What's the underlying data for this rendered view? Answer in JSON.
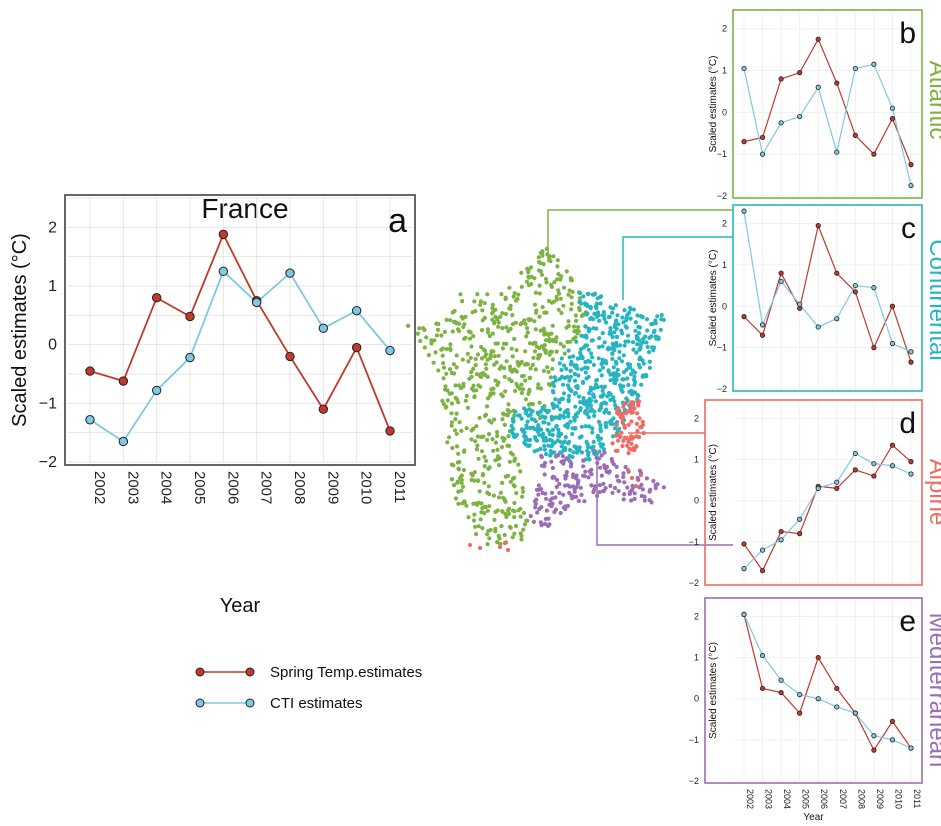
{
  "colors": {
    "spring": "#c0392b",
    "cti": "#7ec8e3",
    "atlantic": "#7cb342",
    "continental": "#26b5c0",
    "alpine": "#ef6b63",
    "mediterranean": "#9b6db5",
    "point_stroke": "#222222"
  },
  "years": [
    "2002",
    "2003",
    "2004",
    "2005",
    "2006",
    "2007",
    "2008",
    "2009",
    "2010",
    "2011"
  ],
  "legend": {
    "spring_label": "Spring Temp.estimates",
    "cti_label": "CTI estimates"
  },
  "chart_data": [
    {
      "id": "a",
      "type": "line",
      "title": "France",
      "panel_letter": "a",
      "xlabel": "Year",
      "ylabel": "Scaled estimates (°C)",
      "ylim": [
        -2,
        2.5
      ],
      "yticks": [
        "2",
        "1",
        "0",
        "−1",
        "−2"
      ],
      "grid": true,
      "categories": [
        "2002",
        "2003",
        "2004",
        "2005",
        "2006",
        "2007",
        "2008",
        "2009",
        "2010",
        "2011"
      ],
      "series": [
        {
          "name": "Spring Temp.estimates",
          "values": [
            -0.45,
            -0.62,
            0.8,
            0.48,
            1.88,
            0.75,
            -0.2,
            -1.1,
            -0.05,
            -1.47
          ]
        },
        {
          "name": "CTI estimates",
          "values": [
            -1.28,
            -1.65,
            -0.78,
            -0.22,
            1.25,
            0.72,
            1.22,
            0.28,
            0.58,
            -0.1
          ]
        }
      ]
    },
    {
      "id": "b",
      "type": "line",
      "panel_letter": "b",
      "region": "Atlantic",
      "xlabel": "",
      "ylabel": "Scaled estimates (°C)",
      "ylim": [
        -2,
        2.4
      ],
      "yticks": [
        "2",
        "1",
        "0",
        "−1",
        "−2"
      ],
      "categories": [
        "2002",
        "2003",
        "2004",
        "2005",
        "2006",
        "2007",
        "2008",
        "2009",
        "2010",
        "2011"
      ],
      "series": [
        {
          "name": "Spring Temp.estimates",
          "values": [
            -0.7,
            -0.6,
            0.8,
            0.95,
            1.75,
            0.7,
            -0.55,
            -1.0,
            -0.15,
            -1.25
          ]
        },
        {
          "name": "CTI estimates",
          "values": [
            1.05,
            -1.0,
            -0.25,
            -0.1,
            0.6,
            -0.95,
            1.05,
            1.15,
            0.1,
            -1.75
          ]
        }
      ]
    },
    {
      "id": "c",
      "type": "line",
      "panel_letter": "c",
      "region": "Continental",
      "xlabel": "",
      "ylabel": "Scaled estimates (°C)",
      "ylim": [
        -2,
        2.4
      ],
      "yticks": [
        "2",
        "1",
        "0",
        "−1",
        "−2"
      ],
      "categories": [
        "2002",
        "2003",
        "2004",
        "2005",
        "2006",
        "2007",
        "2008",
        "2009",
        "2010",
        "2011"
      ],
      "series": [
        {
          "name": "Spring Temp.estimates",
          "values": [
            -0.25,
            -0.7,
            0.8,
            -0.05,
            1.95,
            0.8,
            0.35,
            -1.0,
            0.0,
            -1.35
          ]
        },
        {
          "name": "CTI estimates",
          "values": [
            2.3,
            -0.45,
            0.6,
            0.05,
            -0.5,
            -0.3,
            0.5,
            0.45,
            -0.9,
            -1.1
          ]
        }
      ]
    },
    {
      "id": "d",
      "type": "line",
      "panel_letter": "d",
      "region": "Alpine",
      "xlabel": "",
      "ylabel": "Scaled estimates (°C)",
      "ylim": [
        -2,
        2.4
      ],
      "yticks": [
        "2",
        "1",
        "0",
        "−1",
        "−2"
      ],
      "categories": [
        "2002",
        "2003",
        "2004",
        "2005",
        "2006",
        "2007",
        "2008",
        "2009",
        "2010",
        "2011"
      ],
      "series": [
        {
          "name": "Spring Temp.estimates",
          "values": [
            -1.05,
            -1.7,
            -0.75,
            -0.8,
            0.35,
            0.3,
            0.75,
            0.6,
            1.35,
            0.95
          ]
        },
        {
          "name": "CTI estimates",
          "values": [
            -1.65,
            -1.2,
            -0.95,
            -0.45,
            0.3,
            0.45,
            1.15,
            0.9,
            0.85,
            0.65
          ]
        }
      ]
    },
    {
      "id": "e",
      "type": "line",
      "panel_letter": "e",
      "region": "Mediterranean",
      "xlabel": "Year",
      "ylabel": "Scaled estimates (°C)",
      "ylim": [
        -2,
        2.4
      ],
      "yticks": [
        "2",
        "1",
        "0",
        "−1",
        "−2"
      ],
      "categories": [
        "2002",
        "2003",
        "2004",
        "2005",
        "2006",
        "2007",
        "2008",
        "2009",
        "2010",
        "2011"
      ],
      "series": [
        {
          "name": "Spring Temp.estimates",
          "values": [
            2.05,
            0.25,
            0.15,
            -0.35,
            1.0,
            0.25,
            -0.35,
            -1.25,
            -0.55,
            -1.2
          ]
        },
        {
          "name": "CTI estimates",
          "values": [
            2.05,
            1.05,
            0.45,
            0.1,
            0.0,
            -0.2,
            -0.35,
            -0.9,
            -1.0,
            -1.2
          ]
        }
      ]
    }
  ]
}
